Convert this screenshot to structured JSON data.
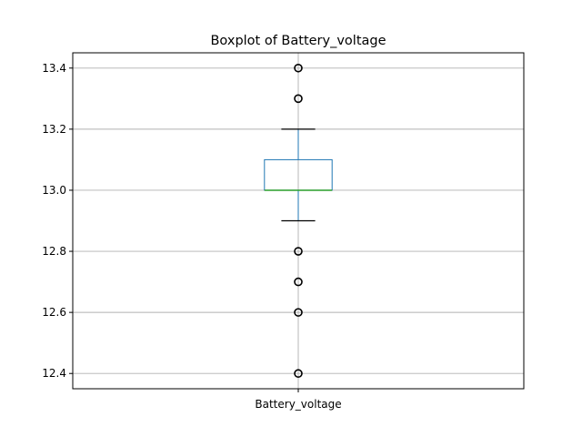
{
  "chart_data": {
    "type": "boxplot",
    "title": "Boxplot of Battery_voltage",
    "xlabel": "",
    "ylabel": "",
    "categories": [
      "Battery_voltage"
    ],
    "ylim": [
      12.35,
      13.45
    ],
    "yticks": [
      "12.4",
      "12.6",
      "12.8",
      "13.0",
      "13.2",
      "13.4"
    ],
    "grid": true,
    "series": [
      {
        "category": "Battery_voltage",
        "q1": 13.0,
        "median": 13.0,
        "q3": 13.1,
        "whisker_low": 12.9,
        "whisker_high": 13.2,
        "outliers": [
          13.4,
          13.3,
          12.8,
          12.7,
          12.6,
          12.4
        ]
      }
    ],
    "colors": {
      "box": "#1f77b4",
      "median": "#2ca02c",
      "whisker": "#1f77b4",
      "cap": "#000000",
      "outlier": "#000000",
      "grid": "#b0b0b0"
    }
  }
}
